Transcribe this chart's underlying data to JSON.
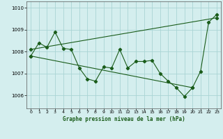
{
  "title": "Graphe pression niveau de la mer (hPa)",
  "bg_color": "#d4eeee",
  "grid_color": "#aad4d4",
  "line_color": "#1a5c1a",
  "xlim": [
    -0.5,
    23.5
  ],
  "ylim": [
    1005.4,
    1010.3
  ],
  "yticks": [
    1006,
    1007,
    1008,
    1009,
    1010
  ],
  "xticks": [
    0,
    1,
    2,
    3,
    4,
    5,
    6,
    7,
    8,
    9,
    10,
    11,
    12,
    13,
    14,
    15,
    16,
    17,
    18,
    19,
    20,
    21,
    22,
    23
  ],
  "series_main": {
    "x": [
      0,
      1,
      2,
      3,
      4,
      5,
      6,
      7,
      8,
      9,
      10,
      11,
      12,
      13,
      14,
      15,
      16,
      17,
      18,
      19,
      20,
      21,
      22,
      23
    ],
    "y": [
      1007.8,
      1008.4,
      1008.2,
      1008.9,
      1008.15,
      1008.1,
      1007.25,
      1006.75,
      1006.65,
      1007.3,
      1007.25,
      1008.1,
      1007.25,
      1007.55,
      1007.55,
      1007.6,
      1007.0,
      1006.65,
      1006.35,
      1005.95,
      1006.35,
      1007.1,
      1009.35,
      1009.7
    ]
  },
  "series_upper": {
    "x": [
      0,
      23
    ],
    "y": [
      1008.1,
      1009.55
    ]
  },
  "series_lower": {
    "x": [
      0,
      20
    ],
    "y": [
      1007.8,
      1006.35
    ]
  }
}
